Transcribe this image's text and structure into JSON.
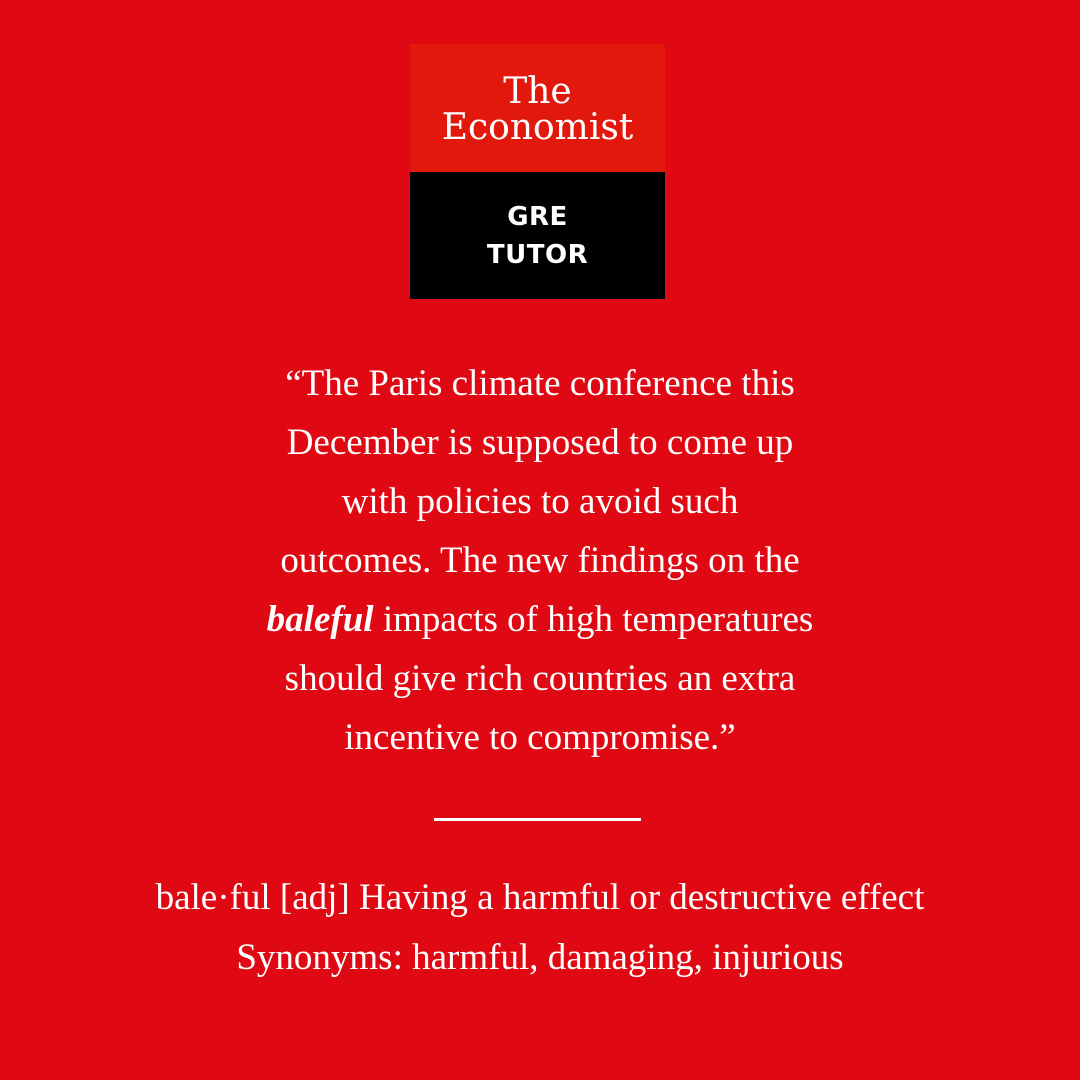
{
  "logo": {
    "brand_line1": "The",
    "brand_line2": "Economist",
    "badge_line1": "GRE",
    "badge_line2": "TUTOR",
    "colors": {
      "red": "#e2180d",
      "black": "#000000"
    }
  },
  "quote": {
    "line1": "“The Paris climate conference this",
    "line2": "December is supposed to come up",
    "line3": "with policies to avoid such",
    "line4": "outcomes. The new findings on the",
    "keyword": "baleful",
    "line5_rest": " impacts of high temperatures",
    "line6": "should give rich countries an extra",
    "line7": "incentive to compromise.”"
  },
  "definition": {
    "line1": "bale·ful [adj] Having a harmful or destructive effect",
    "line2": "Synonyms: harmful, damaging, injurious"
  },
  "colors": {
    "background": "#e00812",
    "text": "#ffffff"
  }
}
